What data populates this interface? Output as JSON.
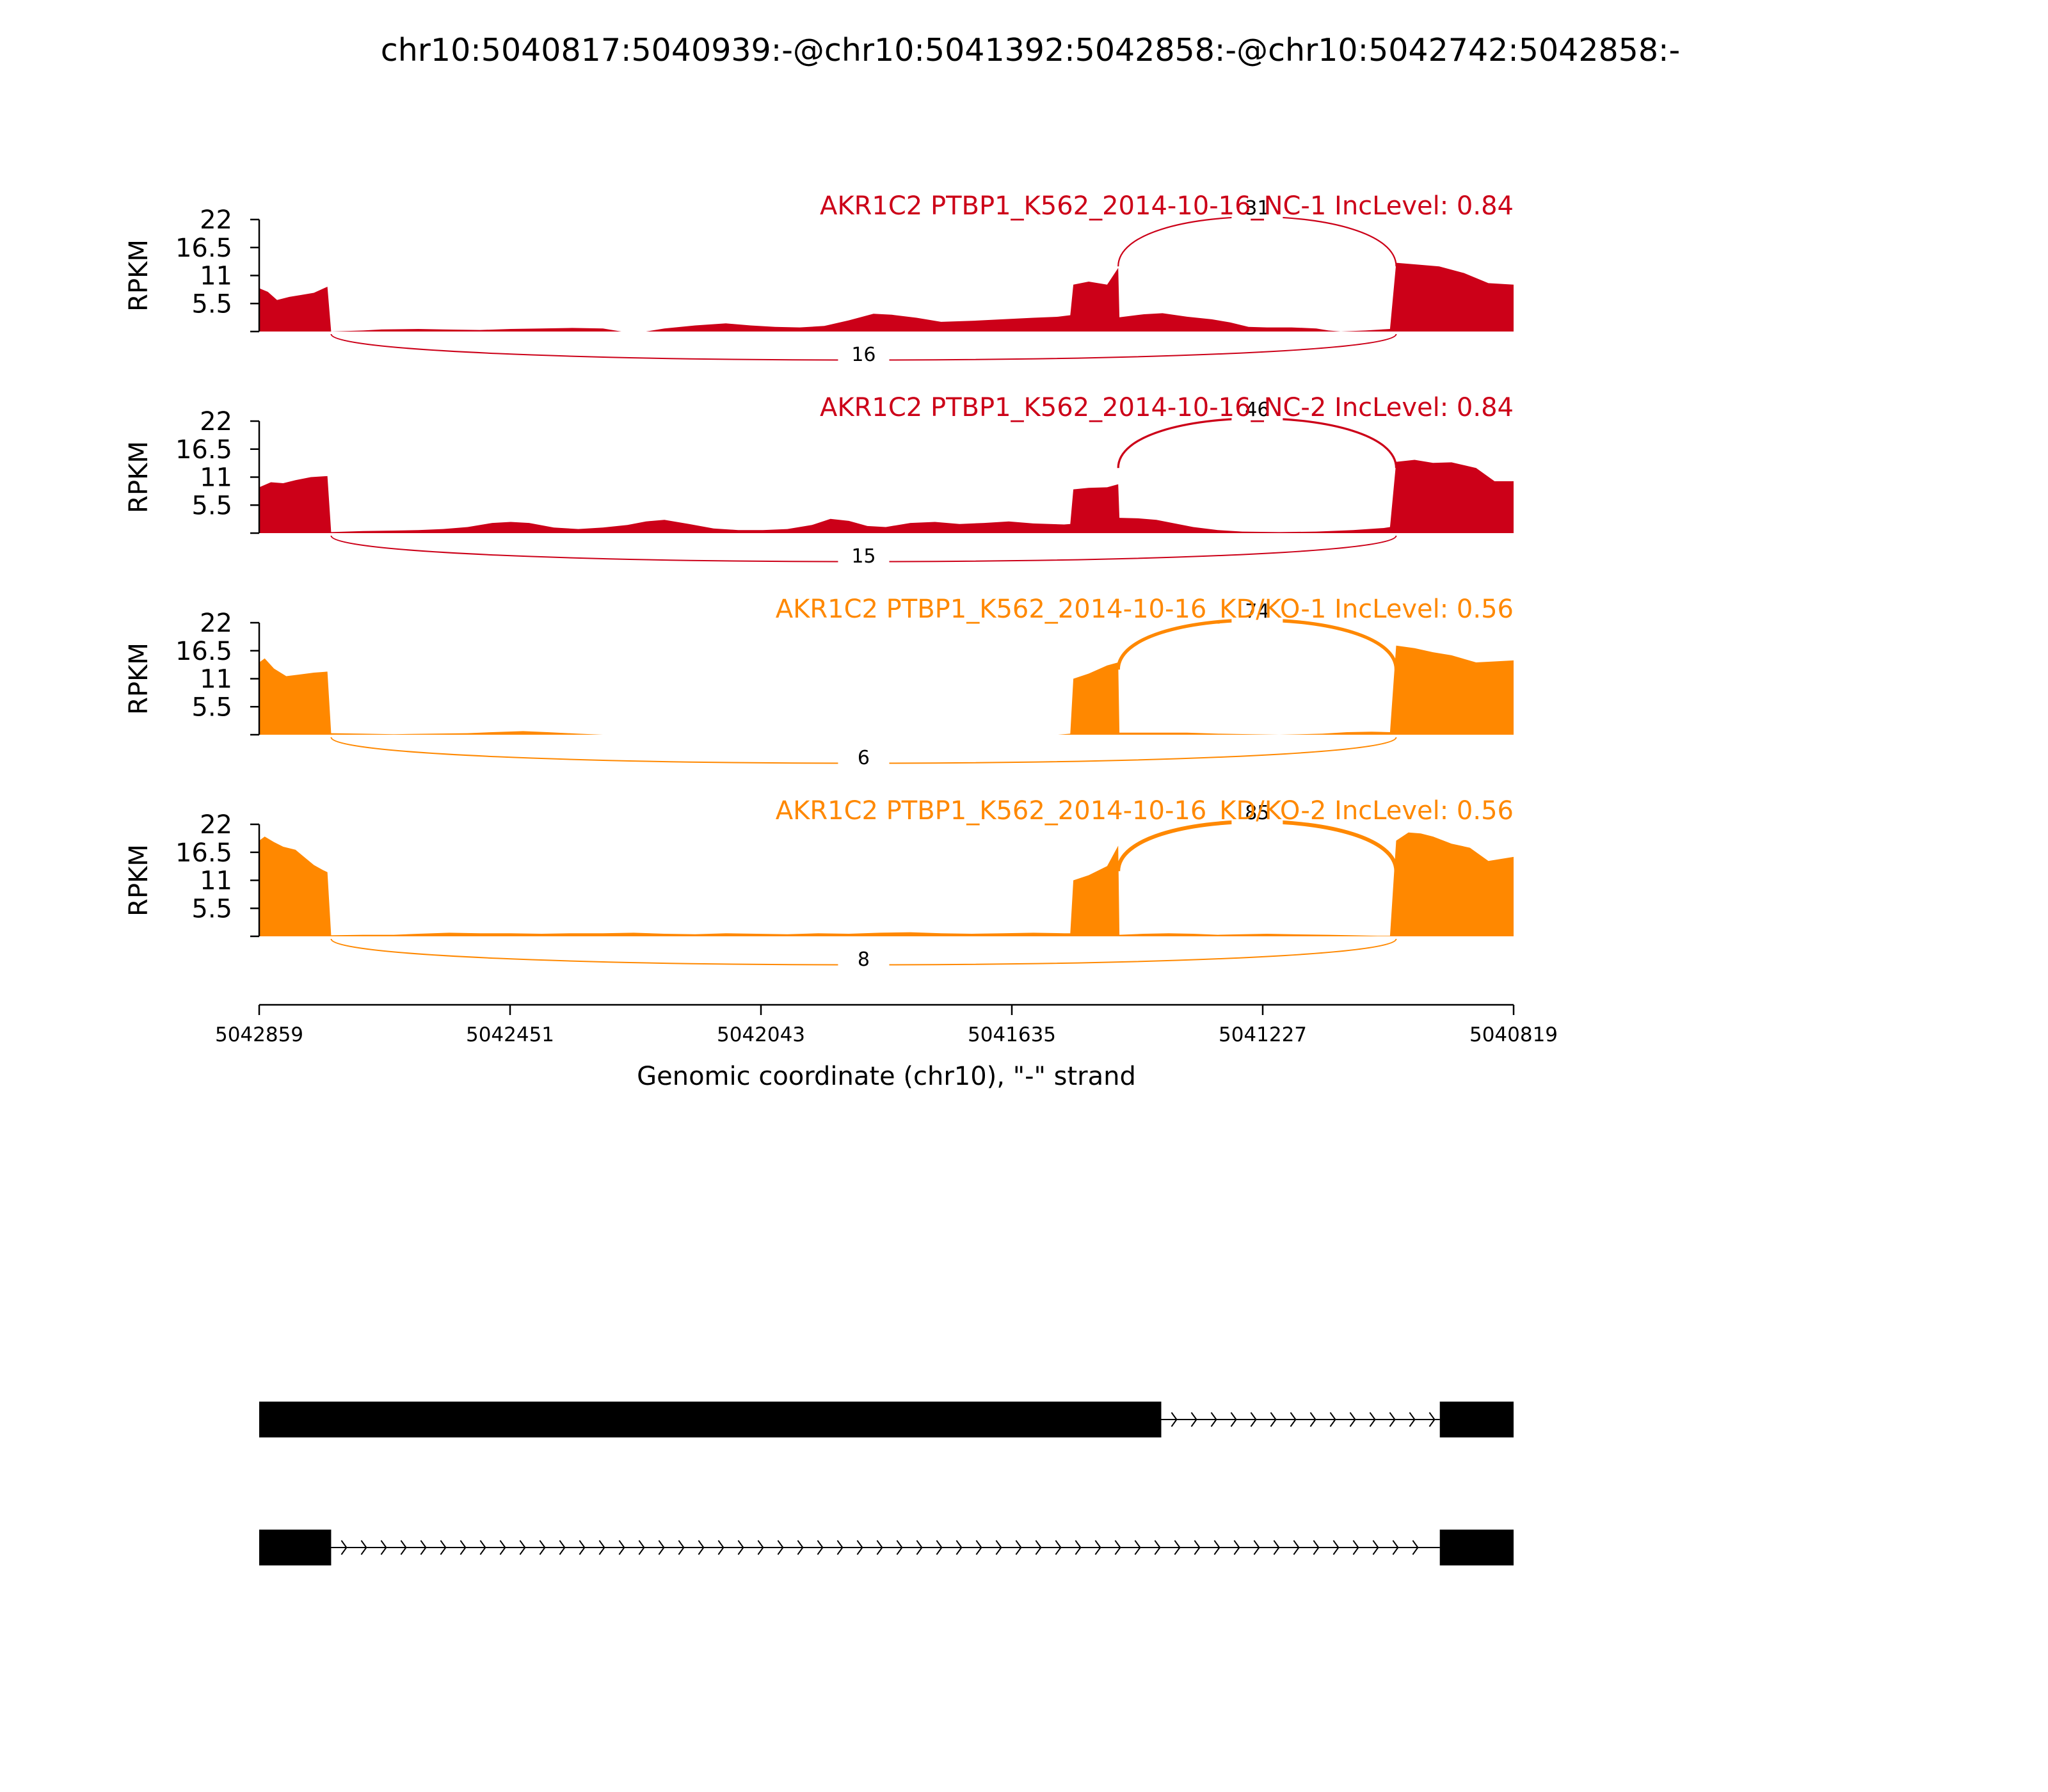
{
  "page": {
    "title": "chr10:5040817:5040939:-@chr10:5041392:5042858:-@chr10:5042742:5042858:-"
  },
  "chart_data": {
    "type": "area",
    "subtype": "sashimi-plot",
    "title": "chr10:5040817:5040939:-@chr10:5041392:5042858:-@chr10:5042742:5042858:-",
    "ylabel": "RPKM",
    "xlabel": "Genomic coordinate (chr10), \"-\" strand",
    "x_axis": {
      "direction": "reversed",
      "ticks": [
        5042859,
        5042451,
        5042043,
        5041635,
        5041227,
        5040819
      ],
      "tick_labels": [
        "5042859",
        "5042451",
        "5042043",
        "5041635",
        "5041227",
        "5040819"
      ],
      "range": [
        5042859,
        5040819
      ]
    },
    "y_axis": {
      "ticks": [
        5.5,
        11,
        16.5,
        22
      ],
      "tick_labels": [
        "5.5",
        "11",
        "16.5",
        "22"
      ],
      "ylim": [
        0,
        22
      ]
    },
    "grid": false,
    "legend": "none",
    "colors": {
      "NC": "#cc0018",
      "KD": "#ff8800",
      "gene": "#000000"
    },
    "tracks": [
      {
        "name": "AKR1C2 PTBP1_K562_2014-10-16_NC-1 IncLevel: 0.84",
        "group": "NC",
        "color": "#cc0018",
        "coverage": [
          {
            "x": 5042859,
            "y": 8.5
          },
          {
            "x": 5042845,
            "y": 7.8
          },
          {
            "x": 5042830,
            "y": 6.2
          },
          {
            "x": 5042810,
            "y": 6.8
          },
          {
            "x": 5042790,
            "y": 7.2
          },
          {
            "x": 5042770,
            "y": 7.6
          },
          {
            "x": 5042748,
            "y": 8.8
          },
          {
            "x": 5042742,
            "y": 0
          },
          {
            "x": 5042690,
            "y": 0.2
          },
          {
            "x": 5042660,
            "y": 0.4
          },
          {
            "x": 5042600,
            "y": 0.5
          },
          {
            "x": 5042560,
            "y": 0.4
          },
          {
            "x": 5042500,
            "y": 0.3
          },
          {
            "x": 5042450,
            "y": 0.5
          },
          {
            "x": 5042400,
            "y": 0.6
          },
          {
            "x": 5042350,
            "y": 0.7
          },
          {
            "x": 5042300,
            "y": 0.6
          },
          {
            "x": 5042270,
            "y": 0
          },
          {
            "x": 5042230,
            "y": 0
          },
          {
            "x": 5042200,
            "y": 0.6
          },
          {
            "x": 5042150,
            "y": 1.2
          },
          {
            "x": 5042100,
            "y": 1.6
          },
          {
            "x": 5042060,
            "y": 1.2
          },
          {
            "x": 5042020,
            "y": 0.9
          },
          {
            "x": 5041980,
            "y": 0.8
          },
          {
            "x": 5041940,
            "y": 1.1
          },
          {
            "x": 5041900,
            "y": 2.2
          },
          {
            "x": 5041860,
            "y": 3.5
          },
          {
            "x": 5041830,
            "y": 3.3
          },
          {
            "x": 5041790,
            "y": 2.7
          },
          {
            "x": 5041750,
            "y": 1.9
          },
          {
            "x": 5041700,
            "y": 2.1
          },
          {
            "x": 5041650,
            "y": 2.4
          },
          {
            "x": 5041600,
            "y": 2.7
          },
          {
            "x": 5041560,
            "y": 2.9
          },
          {
            "x": 5041540,
            "y": 3.2
          },
          {
            "x": 5041535,
            "y": 9.2
          },
          {
            "x": 5041510,
            "y": 9.8
          },
          {
            "x": 5041480,
            "y": 9.2
          },
          {
            "x": 5041462,
            "y": 12.5
          },
          {
            "x": 5041460,
            "y": 2.8
          },
          {
            "x": 5041420,
            "y": 3.4
          },
          {
            "x": 5041390,
            "y": 3.6
          },
          {
            "x": 5041350,
            "y": 2.9
          },
          {
            "x": 5041310,
            "y": 2.4
          },
          {
            "x": 5041280,
            "y": 1.8
          },
          {
            "x": 5041250,
            "y": 0.9
          },
          {
            "x": 5041220,
            "y": 0.8
          },
          {
            "x": 5041180,
            "y": 0.8
          },
          {
            "x": 5041140,
            "y": 0.6
          },
          {
            "x": 5041120,
            "y": 0.2
          },
          {
            "x": 5041100,
            "y": 0
          },
          {
            "x": 5041060,
            "y": 0.2
          },
          {
            "x": 5041020,
            "y": 0.5
          },
          {
            "x": 5041010,
            "y": 13.5
          },
          {
            "x": 5040980,
            "y": 13.2
          },
          {
            "x": 5040940,
            "y": 12.8
          },
          {
            "x": 5040900,
            "y": 11.5
          },
          {
            "x": 5040860,
            "y": 9.5
          },
          {
            "x": 5040819,
            "y": 9.2
          }
        ],
        "junctions": [
          {
            "start": 5041462,
            "end": 5041010,
            "count": "31",
            "side": "above"
          },
          {
            "start": 5042742,
            "end": 5041010,
            "count": "16",
            "side": "below"
          }
        ]
      },
      {
        "name": "AKR1C2 PTBP1_K562_2014-10-16_NC-2 IncLevel: 0.84",
        "group": "NC",
        "color": "#cc0018",
        "coverage": [
          {
            "x": 5042859,
            "y": 9.0
          },
          {
            "x": 5042840,
            "y": 10.0
          },
          {
            "x": 5042820,
            "y": 9.8
          },
          {
            "x": 5042800,
            "y": 10.4
          },
          {
            "x": 5042775,
            "y": 11.0
          },
          {
            "x": 5042748,
            "y": 11.2
          },
          {
            "x": 5042742,
            "y": 0.2
          },
          {
            "x": 5042690,
            "y": 0.4
          },
          {
            "x": 5042640,
            "y": 0.5
          },
          {
            "x": 5042600,
            "y": 0.6
          },
          {
            "x": 5042560,
            "y": 0.8
          },
          {
            "x": 5042520,
            "y": 1.2
          },
          {
            "x": 5042480,
            "y": 2.0
          },
          {
            "x": 5042450,
            "y": 2.2
          },
          {
            "x": 5042420,
            "y": 2.0
          },
          {
            "x": 5042380,
            "y": 1.1
          },
          {
            "x": 5042340,
            "y": 0.8
          },
          {
            "x": 5042300,
            "y": 1.1
          },
          {
            "x": 5042260,
            "y": 1.6
          },
          {
            "x": 5042230,
            "y": 2.3
          },
          {
            "x": 5042200,
            "y": 2.6
          },
          {
            "x": 5042160,
            "y": 1.8
          },
          {
            "x": 5042120,
            "y": 0.9
          },
          {
            "x": 5042080,
            "y": 0.6
          },
          {
            "x": 5042040,
            "y": 0.6
          },
          {
            "x": 5042000,
            "y": 0.8
          },
          {
            "x": 5041960,
            "y": 1.6
          },
          {
            "x": 5041930,
            "y": 2.8
          },
          {
            "x": 5041900,
            "y": 2.4
          },
          {
            "x": 5041870,
            "y": 1.4
          },
          {
            "x": 5041840,
            "y": 1.2
          },
          {
            "x": 5041800,
            "y": 2.0
          },
          {
            "x": 5041760,
            "y": 2.2
          },
          {
            "x": 5041720,
            "y": 1.8
          },
          {
            "x": 5041680,
            "y": 2.0
          },
          {
            "x": 5041640,
            "y": 2.3
          },
          {
            "x": 5041600,
            "y": 1.9
          },
          {
            "x": 5041550,
            "y": 1.7
          },
          {
            "x": 5041540,
            "y": 1.8
          },
          {
            "x": 5041535,
            "y": 8.6
          },
          {
            "x": 5041510,
            "y": 8.9
          },
          {
            "x": 5041480,
            "y": 9.0
          },
          {
            "x": 5041462,
            "y": 9.6
          },
          {
            "x": 5041460,
            "y": 3.0
          },
          {
            "x": 5041430,
            "y": 2.9
          },
          {
            "x": 5041400,
            "y": 2.6
          },
          {
            "x": 5041370,
            "y": 1.9
          },
          {
            "x": 5041340,
            "y": 1.2
          },
          {
            "x": 5041300,
            "y": 0.6
          },
          {
            "x": 5041260,
            "y": 0.3
          },
          {
            "x": 5041200,
            "y": 0.2
          },
          {
            "x": 5041140,
            "y": 0.3
          },
          {
            "x": 5041080,
            "y": 0.6
          },
          {
            "x": 5041030,
            "y": 1.0
          },
          {
            "x": 5041020,
            "y": 1.2
          },
          {
            "x": 5041010,
            "y": 14.0
          },
          {
            "x": 5040980,
            "y": 14.4
          },
          {
            "x": 5040950,
            "y": 13.8
          },
          {
            "x": 5040920,
            "y": 13.9
          },
          {
            "x": 5040880,
            "y": 12.8
          },
          {
            "x": 5040850,
            "y": 10.2
          },
          {
            "x": 5040819,
            "y": 10.2
          }
        ],
        "junctions": [
          {
            "start": 5041462,
            "end": 5041010,
            "count": "46",
            "side": "above"
          },
          {
            "start": 5042742,
            "end": 5041010,
            "count": "15",
            "side": "below"
          }
        ]
      },
      {
        "name": "AKR1C2 PTBP1_K562_2014-10-16_KD/KO-1 IncLevel: 0.56",
        "group": "KD",
        "color": "#ff8800",
        "coverage": [
          {
            "x": 5042859,
            "y": 14.2
          },
          {
            "x": 5042850,
            "y": 15.0
          },
          {
            "x": 5042835,
            "y": 13.0
          },
          {
            "x": 5042815,
            "y": 11.5
          },
          {
            "x": 5042795,
            "y": 11.8
          },
          {
            "x": 5042770,
            "y": 12.2
          },
          {
            "x": 5042748,
            "y": 12.4
          },
          {
            "x": 5042742,
            "y": 0.3
          },
          {
            "x": 5042690,
            "y": 0.2
          },
          {
            "x": 5042640,
            "y": 0.1
          },
          {
            "x": 5042580,
            "y": 0.2
          },
          {
            "x": 5042520,
            "y": 0.3
          },
          {
            "x": 5042480,
            "y": 0.5
          },
          {
            "x": 5042430,
            "y": 0.7
          },
          {
            "x": 5042390,
            "y": 0.5
          },
          {
            "x": 5042340,
            "y": 0.2
          },
          {
            "x": 5042300,
            "y": 0
          },
          {
            "x": 5041560,
            "y": 0
          },
          {
            "x": 5041540,
            "y": 0.2
          },
          {
            "x": 5041535,
            "y": 11.0
          },
          {
            "x": 5041510,
            "y": 12.0
          },
          {
            "x": 5041480,
            "y": 13.6
          },
          {
            "x": 5041462,
            "y": 14.2
          },
          {
            "x": 5041460,
            "y": 0.4
          },
          {
            "x": 5041400,
            "y": 0.4
          },
          {
            "x": 5041350,
            "y": 0.4
          },
          {
            "x": 5041300,
            "y": 0.2
          },
          {
            "x": 5041200,
            "y": 0
          },
          {
            "x": 5041130,
            "y": 0.2
          },
          {
            "x": 5041090,
            "y": 0.5
          },
          {
            "x": 5041050,
            "y": 0.6
          },
          {
            "x": 5041020,
            "y": 0.5
          },
          {
            "x": 5041010,
            "y": 17.5
          },
          {
            "x": 5040980,
            "y": 17.0
          },
          {
            "x": 5040950,
            "y": 16.2
          },
          {
            "x": 5040920,
            "y": 15.6
          },
          {
            "x": 5040880,
            "y": 14.2
          },
          {
            "x": 5040850,
            "y": 14.4
          },
          {
            "x": 5040819,
            "y": 14.6
          }
        ],
        "junctions": [
          {
            "start": 5041462,
            "end": 5041010,
            "count": "74",
            "side": "above"
          },
          {
            "start": 5042742,
            "end": 5041010,
            "count": "6",
            "side": "below"
          }
        ]
      },
      {
        "name": "AKR1C2 PTBP1_K562_2014-10-16_KD/KO-2 IncLevel: 0.56",
        "group": "KD",
        "color": "#ff8800",
        "coverage": [
          {
            "x": 5042859,
            "y": 18.8
          },
          {
            "x": 5042850,
            "y": 19.6
          },
          {
            "x": 5042835,
            "y": 18.5
          },
          {
            "x": 5042820,
            "y": 17.6
          },
          {
            "x": 5042800,
            "y": 17.0
          },
          {
            "x": 5042785,
            "y": 15.5
          },
          {
            "x": 5042770,
            "y": 14.0
          },
          {
            "x": 5042755,
            "y": 13.0
          },
          {
            "x": 5042748,
            "y": 12.6
          },
          {
            "x": 5042742,
            "y": 0.2
          },
          {
            "x": 5042690,
            "y": 0.3
          },
          {
            "x": 5042640,
            "y": 0.3
          },
          {
            "x": 5042600,
            "y": 0.5
          },
          {
            "x": 5042550,
            "y": 0.7
          },
          {
            "x": 5042500,
            "y": 0.6
          },
          {
            "x": 5042450,
            "y": 0.6
          },
          {
            "x": 5042400,
            "y": 0.5
          },
          {
            "x": 5042350,
            "y": 0.6
          },
          {
            "x": 5042300,
            "y": 0.6
          },
          {
            "x": 5042250,
            "y": 0.7
          },
          {
            "x": 5042200,
            "y": 0.5
          },
          {
            "x": 5042150,
            "y": 0.4
          },
          {
            "x": 5042100,
            "y": 0.6
          },
          {
            "x": 5042050,
            "y": 0.5
          },
          {
            "x": 5042000,
            "y": 0.4
          },
          {
            "x": 5041950,
            "y": 0.6
          },
          {
            "x": 5041900,
            "y": 0.5
          },
          {
            "x": 5041850,
            "y": 0.7
          },
          {
            "x": 5041800,
            "y": 0.8
          },
          {
            "x": 5041750,
            "y": 0.6
          },
          {
            "x": 5041700,
            "y": 0.5
          },
          {
            "x": 5041650,
            "y": 0.6
          },
          {
            "x": 5041600,
            "y": 0.7
          },
          {
            "x": 5041550,
            "y": 0.6
          },
          {
            "x": 5041540,
            "y": 0.6
          },
          {
            "x": 5041535,
            "y": 11.0
          },
          {
            "x": 5041510,
            "y": 12.0
          },
          {
            "x": 5041480,
            "y": 13.8
          },
          {
            "x": 5041462,
            "y": 17.8
          },
          {
            "x": 5041460,
            "y": 0.3
          },
          {
            "x": 5041420,
            "y": 0.5
          },
          {
            "x": 5041380,
            "y": 0.6
          },
          {
            "x": 5041340,
            "y": 0.5
          },
          {
            "x": 5041300,
            "y": 0.3
          },
          {
            "x": 5041260,
            "y": 0.4
          },
          {
            "x": 5041220,
            "y": 0.5
          },
          {
            "x": 5041180,
            "y": 0.4
          },
          {
            "x": 5041120,
            "y": 0.3
          },
          {
            "x": 5041080,
            "y": 0.2
          },
          {
            "x": 5041040,
            "y": 0.1
          },
          {
            "x": 5041020,
            "y": 0.1
          },
          {
            "x": 5041010,
            "y": 18.8
          },
          {
            "x": 5040990,
            "y": 20.4
          },
          {
            "x": 5040970,
            "y": 20.2
          },
          {
            "x": 5040950,
            "y": 19.6
          },
          {
            "x": 5040920,
            "y": 18.2
          },
          {
            "x": 5040890,
            "y": 17.4
          },
          {
            "x": 5040860,
            "y": 14.8
          },
          {
            "x": 5040840,
            "y": 15.2
          },
          {
            "x": 5040819,
            "y": 15.6
          }
        ],
        "junctions": [
          {
            "start": 5041462,
            "end": 5041010,
            "count": "85",
            "side": "above"
          },
          {
            "start": 5042742,
            "end": 5041010,
            "count": "8",
            "side": "below"
          }
        ]
      }
    ],
    "isoforms": [
      {
        "exons": [
          [
            5042859,
            5041392
          ],
          [
            5040939,
            5040819
          ]
        ],
        "introns": [
          [
            5041392,
            5040939
          ]
        ]
      },
      {
        "exons": [
          [
            5042859,
            5042742
          ],
          [
            5040939,
            5040819
          ]
        ],
        "introns": [
          [
            5042742,
            5040939
          ]
        ]
      }
    ]
  }
}
